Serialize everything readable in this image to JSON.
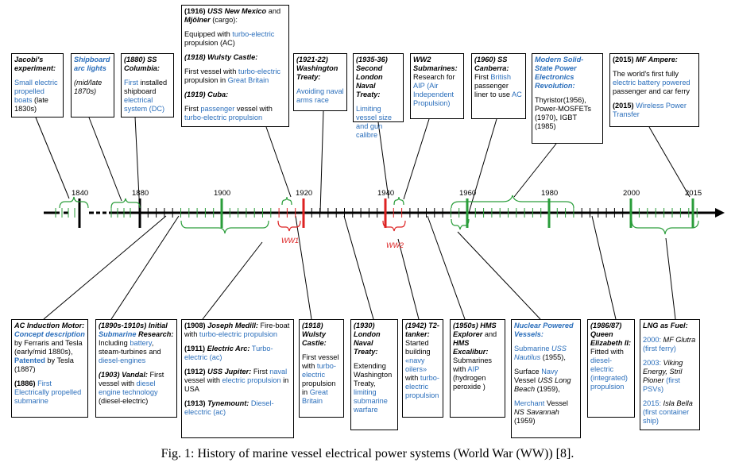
{
  "title_caption": "Fig. 1: History of marine vessel electrical power systems (World War (WW)) [8].",
  "axis": {
    "years": [
      {
        "label": "1840",
        "year": 1840
      },
      {
        "label": "1880",
        "year": 1880
      },
      {
        "label": "1900",
        "year": 1900
      },
      {
        "label": "1920",
        "year": 1920
      },
      {
        "label": "1940",
        "year": 1940
      },
      {
        "label": "1960",
        "year": 1960
      },
      {
        "label": "1980",
        "year": 1980
      },
      {
        "label": "2000",
        "year": 2000
      },
      {
        "label": "2015",
        "year": 2015
      }
    ],
    "ww1_label": "WW1",
    "ww2_label": "WW2"
  },
  "top_boxes": [
    {
      "id": "jacobi",
      "runs": [
        [
          [
            "Jacobi's experiment:",
            "bi"
          ]
        ],
        [
          [
            "Small electric propelled boats",
            "blue"
          ],
          [
            " (late 1830s)",
            ""
          ]
        ]
      ]
    },
    {
      "id": "arclights",
      "runs": [
        [
          [
            "Shipboard arc lights",
            "bib"
          ]
        ],
        [
          [
            "(mid/late 1870s)",
            "i"
          ]
        ]
      ]
    },
    {
      "id": "columbia",
      "runs": [
        [
          [
            "(1880) SS Columbia:",
            "bi"
          ]
        ],
        [
          [
            "First",
            "blue"
          ],
          [
            " installed shipboard ",
            ""
          ],
          [
            "electrical system (DC)",
            "blue"
          ]
        ]
      ]
    },
    {
      "id": "newmexico",
      "runs": [
        [
          [
            "(1916) ",
            "b"
          ],
          [
            "USS New Mexico",
            "bi"
          ],
          [
            " and ",
            ""
          ],
          [
            "Mjölner",
            "bi"
          ],
          [
            " (cargo):",
            ""
          ]
        ],
        [
          [
            "Equipped with ",
            ""
          ],
          [
            "turbo-electric",
            "blue"
          ],
          [
            " propulsion (AC)",
            ""
          ]
        ],
        [
          [
            "(1918) Wulsty Castle:",
            "bi"
          ]
        ],
        [
          [
            "First  vessel with ",
            ""
          ],
          [
            "turbo-electric",
            "blue"
          ],
          [
            " propulsion in ",
            ""
          ],
          [
            "Great Britain",
            "blue"
          ]
        ],
        [
          [
            "(1919) Cuba:",
            "bi"
          ]
        ],
        [
          [
            "First ",
            ""
          ],
          [
            "passenger",
            "blue"
          ],
          [
            " vessel with ",
            ""
          ],
          [
            "turbo-electric propulsion",
            "blue"
          ]
        ]
      ]
    },
    {
      "id": "washington",
      "runs": [
        [
          [
            "(1921-22) Washington Treaty:",
            "bi"
          ]
        ],
        [
          [
            "Avoiding naval arms race",
            "blue"
          ]
        ]
      ]
    },
    {
      "id": "london",
      "runs": [
        [
          [
            "(1935-36) Second London Naval Treaty:",
            "bi"
          ]
        ],
        [
          [
            "Limiting vessel size and gun calibre",
            "blue"
          ]
        ]
      ]
    },
    {
      "id": "ww2sub",
      "runs": [
        [
          [
            "WW2 Submarines:",
            "bi"
          ],
          [
            " Research for ",
            ""
          ],
          [
            "AIP (Air Independent Propulsion)",
            "blue"
          ]
        ]
      ]
    },
    {
      "id": "canberra",
      "runs": [
        [
          [
            "(1960) SS Canberra:",
            "bi"
          ],
          [
            " First ",
            ""
          ],
          [
            "British",
            "blue"
          ],
          [
            " passenger liner to use ",
            ""
          ],
          [
            "AC",
            "blue"
          ]
        ]
      ]
    },
    {
      "id": "modern",
      "runs": [
        [
          [
            "Modern Solid-State Power Electronics Revolution:",
            "bib"
          ]
        ],
        [
          [
            "Thyristor(1956), Power-MOSFETs (1970), IGBT (1985)",
            ""
          ]
        ]
      ]
    },
    {
      "id": "ampere",
      "runs": [
        [
          [
            "(2015) ",
            "b"
          ],
          [
            "MF Ampere:",
            "bi"
          ]
        ],
        [
          [
            "The world's first fully ",
            ""
          ],
          [
            "electric battery powered",
            "blue"
          ],
          [
            " passenger and car ferry",
            ""
          ]
        ],
        [
          [
            "(2015) ",
            "b"
          ],
          [
            "Wireless Power Transfer",
            "blue"
          ]
        ]
      ]
    }
  ],
  "bottom_boxes": [
    {
      "id": "acmotor",
      "runs": [
        [
          [
            "AC Induction Motor: ",
            "bi"
          ],
          [
            "Concept description",
            "bib"
          ],
          [
            " by Ferraris and Tesla (early/mid 1880s), ",
            ""
          ],
          [
            "Patented",
            "bblue"
          ],
          [
            " by Tesla (1887)",
            ""
          ]
        ],
        [
          [
            "(1886) ",
            "b"
          ],
          [
            "First Electrically propelled submarine",
            "blue"
          ]
        ]
      ]
    },
    {
      "id": "initialsub",
      "runs": [
        [
          [
            "(1890s-1910s) Initial ",
            "bi"
          ],
          [
            "Submarine",
            "bib"
          ],
          [
            " Research:",
            "bi"
          ],
          [
            " Including ",
            ""
          ],
          [
            "battery",
            "blue"
          ],
          [
            ", steam-turbines and ",
            ""
          ],
          [
            "diesel-engines",
            "blue"
          ]
        ],
        [
          [
            "(1903) Vandal:",
            "bi"
          ],
          [
            " First vessel with ",
            ""
          ],
          [
            "diesel engine technology",
            "blue"
          ],
          [
            " (diesel-electric)",
            ""
          ]
        ]
      ]
    },
    {
      "id": "medill",
      "runs": [
        [
          [
            "(1908) ",
            "b"
          ],
          [
            "Joseph Medill:",
            "bi"
          ],
          [
            " Fire-boat with ",
            ""
          ],
          [
            "turbo-electric propulsion",
            "blue"
          ]
        ],
        [
          [
            "(1911) ",
            "b"
          ],
          [
            "Electric Arc:",
            "bi"
          ],
          [
            " Turbo-electric (ac)",
            "blue"
          ]
        ],
        [
          [
            "(1912) ",
            "b"
          ],
          [
            "USS Jupiter:",
            "bi"
          ],
          [
            " First ",
            ""
          ],
          [
            "naval",
            "blue"
          ],
          [
            " vessel with ",
            ""
          ],
          [
            "electric propulsion",
            "blue"
          ],
          [
            " in USA",
            ""
          ]
        ],
        [
          [
            "(1913) ",
            "b"
          ],
          [
            "Tynemount:",
            "bi"
          ],
          [
            " Diesel-elecctric (ac)",
            "blue"
          ]
        ]
      ]
    },
    {
      "id": "wulsty2",
      "runs": [
        [
          [
            "(1918) Wulsty Castle:",
            "bi"
          ]
        ],
        [
          [
            "First  vessel with ",
            ""
          ],
          [
            "turbo-electric",
            "blue"
          ],
          [
            " propulsion in ",
            ""
          ],
          [
            "Great Britain",
            "blue"
          ]
        ]
      ]
    },
    {
      "id": "london1930",
      "runs": [
        [
          [
            "(1930) London Naval Treaty:",
            "bi"
          ]
        ],
        [
          [
            "Extending Washington Treaty, ",
            ""
          ],
          [
            "limiting submarine warfare",
            "blue"
          ]
        ]
      ]
    },
    {
      "id": "t2",
      "runs": [
        [
          [
            "(1942) T2-tanker:",
            "bi"
          ],
          [
            " Started building ",
            ""
          ],
          [
            "«navy oilers»",
            "blue"
          ],
          [
            " with ",
            ""
          ],
          [
            "turbo-electric propulsion",
            "blue"
          ]
        ]
      ]
    },
    {
      "id": "explorer",
      "runs": [
        [
          [
            "(1950s) HMS Explorer",
            "bi"
          ],
          [
            " and ",
            ""
          ],
          [
            "HMS Excalibur:",
            "bi"
          ],
          [
            " Submarines with ",
            ""
          ],
          [
            "AIP",
            "blue"
          ],
          [
            " (hydrogen peroxide )",
            ""
          ]
        ]
      ]
    },
    {
      "id": "nuclear",
      "runs": [
        [
          [
            "Nuclear Powered Vessels:",
            "bib"
          ]
        ],
        [
          [
            "Submarine ",
            "blue"
          ],
          [
            "USS Nautilus",
            "ib"
          ],
          [
            " (1955),",
            ""
          ]
        ],
        [
          [
            "Surface ",
            ""
          ],
          [
            "Navy",
            "blue"
          ],
          [
            " Vessel ",
            ""
          ],
          [
            "USS Long Beach",
            "i"
          ],
          [
            " (1959),",
            ""
          ]
        ],
        [
          [
            "Merchant",
            "blue"
          ],
          [
            " Vessel ",
            ""
          ],
          [
            "NS Savannah",
            "i"
          ],
          [
            " (1959)",
            ""
          ]
        ]
      ]
    },
    {
      "id": "elizabeth",
      "runs": [
        [
          [
            "(1986/87) Queen Elizabeth II:",
            "bi"
          ],
          [
            " Fitted with ",
            ""
          ],
          [
            "diesel-electric (integrated) propulsion",
            "blue"
          ]
        ]
      ]
    },
    {
      "id": "lng",
      "runs": [
        [
          [
            "LNG as Fuel:",
            "bi"
          ]
        ],
        [
          [
            "2000: ",
            "blue"
          ],
          [
            "MF Glutra",
            "i"
          ],
          [
            " (first ferry)",
            "blue"
          ]
        ],
        [
          [
            "2003: ",
            "blue"
          ],
          [
            "Viking Energy, Stril Pioner",
            "i"
          ],
          [
            " (first PSVs)",
            "blue"
          ]
        ],
        [
          [
            "2015: ",
            "blue"
          ],
          [
            "Isla Bella",
            "i"
          ],
          [
            " (first container ship)",
            "blue"
          ]
        ]
      ]
    }
  ]
}
